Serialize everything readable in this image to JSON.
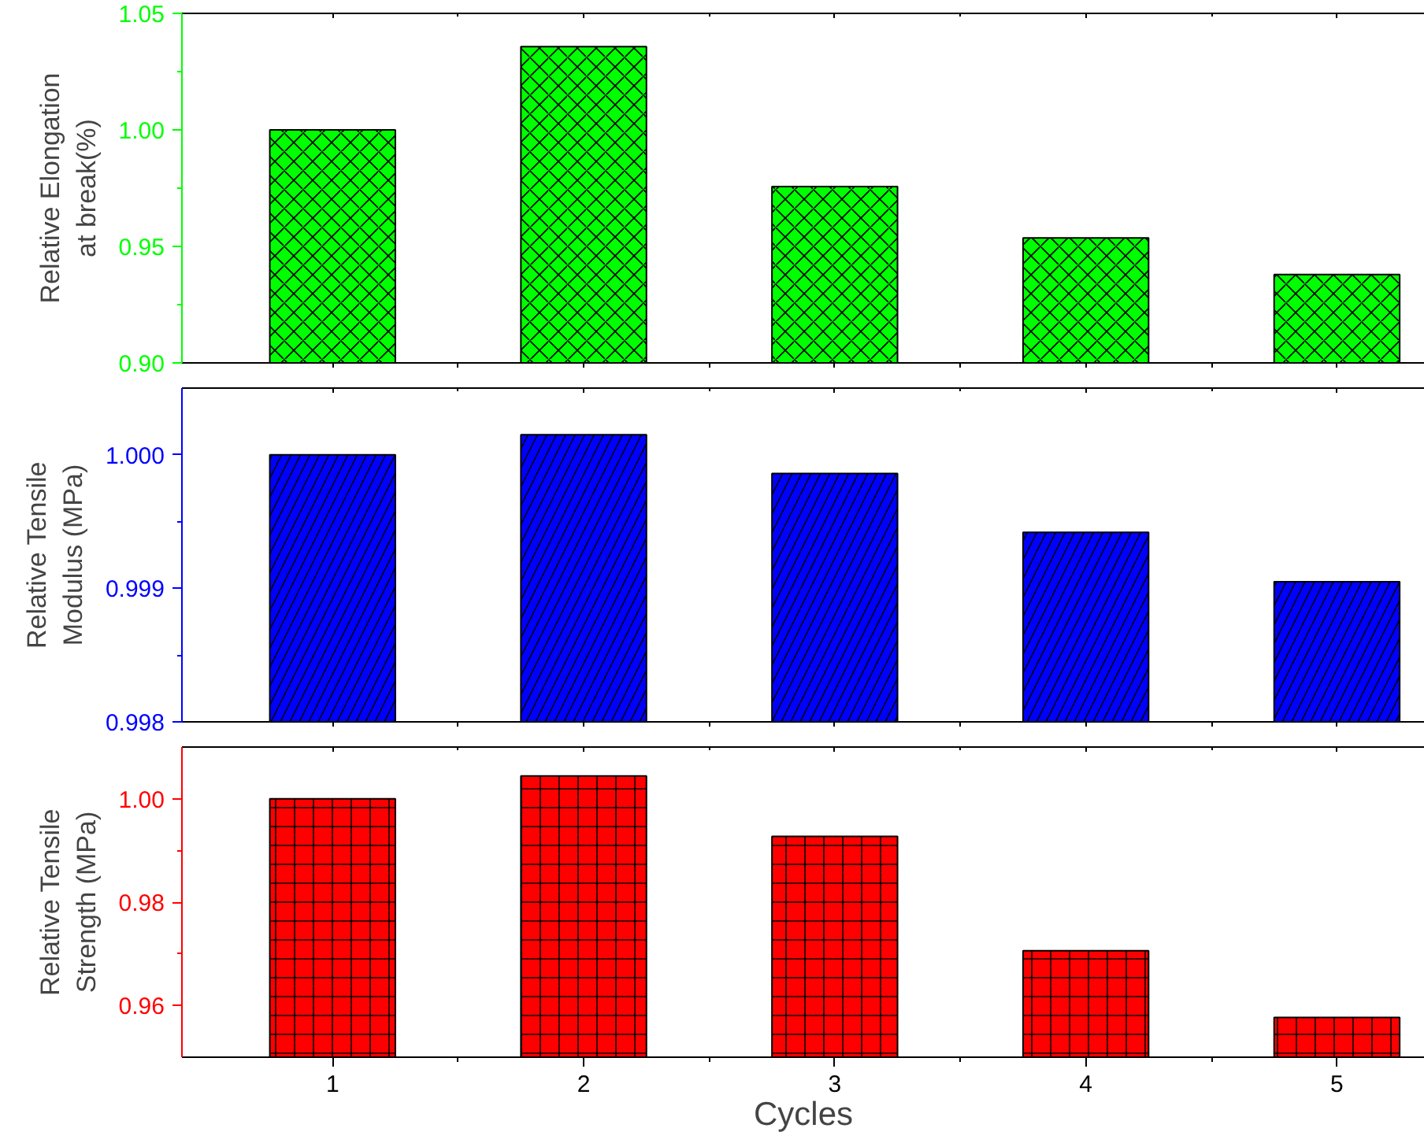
{
  "chart_data": [
    {
      "type": "bar",
      "categories": [
        "1",
        "2",
        "3",
        "4",
        "5"
      ],
      "ylabel": "Relative Elongation\nat break(%)",
      "tick_labels": "y",
      "series": [
        {
          "color": "#00ff00",
          "values": [
            1.0,
            1.0357,
            0.9757,
            0.9536,
            0.9379
          ]
        }
      ],
      "ylim": [
        0.9,
        1.05
      ],
      "yticks": [
        {
          "value": 0.9,
          "label": "0.90"
        },
        {
          "value": 0.95,
          "label": "0.95"
        },
        {
          "value": 1.0,
          "label": "1.00"
        },
        {
          "value": 1.05,
          "label": "1.05"
        }
      ],
      "grid": false
    },
    {
      "type": "bar",
      "categories": [
        "1",
        "2",
        "3",
        "4",
        "5"
      ],
      "ylabel": "Relative Tensile\nModulus (MPa)",
      "tick_labels": "y",
      "series": [
        {
          "color": "#0000ff",
          "values": [
            1.0,
            1.00015,
            0.99986,
            0.99942,
            0.99905
          ]
        }
      ],
      "ylim": [
        0.998,
        1.0005
      ],
      "yticks": [
        0.998,
        0.999,
        {
          "value": 1.0,
          "label": "1.000"
        }
      ],
      "grid": false
    },
    {
      "type": "bar",
      "categories": [
        "1",
        "2",
        "3",
        "4",
        "5"
      ],
      "ylabel": "Relative Tensile\nStrength (MPa)",
      "xlabel": "Cycles",
      "series": [
        {
          "color": "#ff0000",
          "values": [
            1.0,
            1.0044,
            0.9927,
            0.9706,
            0.9577
          ]
        }
      ],
      "ylim": [
        0.95,
        1.01
      ],
      "yticks": [
        0.96,
        0.98,
        {
          "value": 1.0,
          "label": "1.00"
        }
      ],
      "grid": false
    }
  ]
}
